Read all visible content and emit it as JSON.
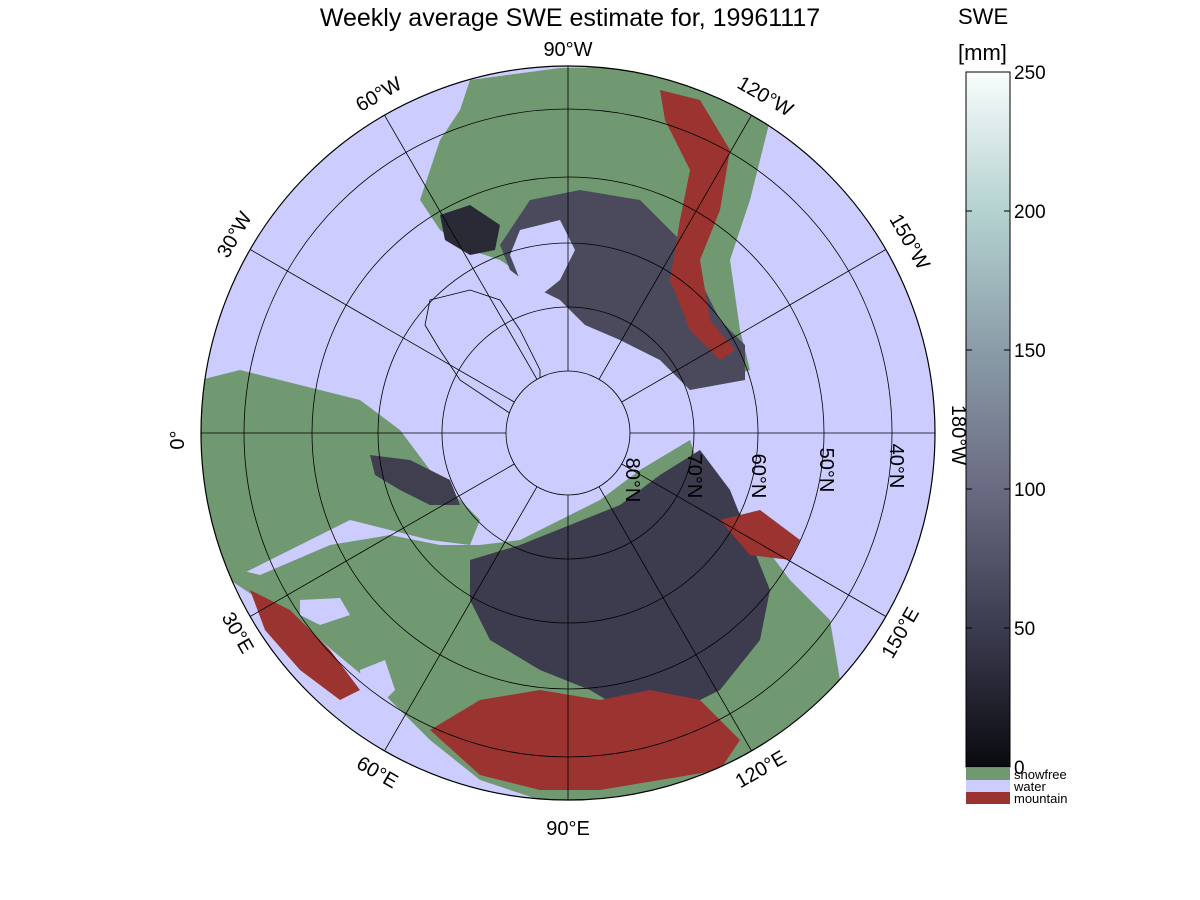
{
  "title": "Weekly average SWE estimate for, 19961117",
  "colorbar": {
    "title_line1": "SWE",
    "title_line2": "[mm]",
    "range": [
      0,
      250
    ],
    "ticks": [
      {
        "value": 0,
        "label": "0"
      },
      {
        "value": 50,
        "label": "50"
      },
      {
        "value": 100,
        "label": "100"
      },
      {
        "value": 150,
        "label": "150"
      },
      {
        "value": 200,
        "label": "200"
      },
      {
        "value": 250,
        "label": "250"
      }
    ],
    "gradient_colors": [
      "#0a0a10",
      "#3c3c50",
      "#6a6a82",
      "#8a9ca8",
      "#b4d2d0",
      "#f8fcfc"
    ]
  },
  "categories": [
    {
      "name": "snowfree",
      "color": "#719971"
    },
    {
      "name": "water",
      "color": "#ccccff"
    },
    {
      "name": "mountain",
      "color": "#9b3330"
    }
  ],
  "map": {
    "projection": "north polar stereographic",
    "ocean_color": "#ccccff",
    "land_snowfree_color": "#719971",
    "mountain_color": "#9b3330",
    "snow_color": "#3f3f4f",
    "longitude_labels": {
      "top": "90°W",
      "upper_left": "60°W",
      "left_upper": "30°W",
      "left": "0°",
      "left_lower": "30°E",
      "lower_left": "60°E",
      "bottom": "90°E",
      "lower_right": "120°E",
      "right_lower": "150°E",
      "right": "180°W",
      "right_upper": "150°W",
      "upper_right": "120°W"
    },
    "latitude_labels": [
      "80°N",
      "70°N",
      "60°N",
      "50°N",
      "40°N"
    ]
  }
}
